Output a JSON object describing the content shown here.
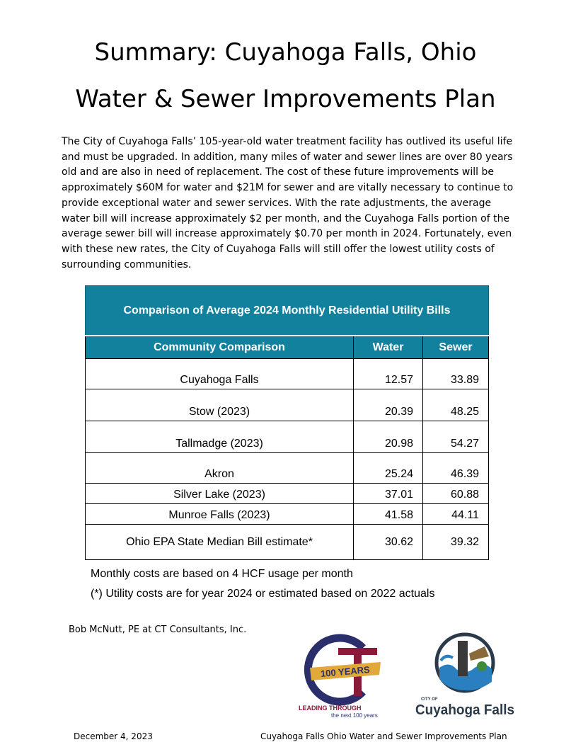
{
  "title_line1": "Summary: Cuyahoga Falls, Ohio",
  "title_line2": "Water & Sewer Improvements Plan",
  "intro": "The City of Cuyahoga Falls’ 105-year-old water treatment facility has outlived its useful life and must be upgraded. In addition, many miles of water and sewer lines are over 80 years old and are also in need of replacement. The cost of these future improvements will be approximately $60M for water and $21M for sewer and are vitally necessary to continue to provide exceptional water and sewer services. With the rate adjustments, the average water bill will increase approximately $2 per month, and the Cuyahoga Falls portion of the average sewer bill will increase approximately $0.70 per month in 2024. Fortunately, even with these new rates, the City of Cuyahoga Falls will still offer the lowest utility costs of surrounding communities.",
  "table": {
    "caption": "Comparison of Average 2024 Monthly Residential Utility Bills",
    "headers": [
      "Community Comparison",
      "Water",
      "Sewer"
    ],
    "rows": [
      {
        "community": "Cuyahoga Falls",
        "water": "12.57",
        "sewer": "33.89"
      },
      {
        "community": "Stow (2023)",
        "water": "20.39",
        "sewer": "48.25"
      },
      {
        "community": "Tallmadge (2023)",
        "water": "20.98",
        "sewer": "54.27"
      },
      {
        "community": "Akron",
        "water": "25.24",
        "sewer": "46.39"
      },
      {
        "community": "Silver Lake (2023)",
        "water": "37.01",
        "sewer": "60.88"
      },
      {
        "community": "Munroe Falls (2023)",
        "water": "41.58",
        "sewer": "44.11"
      },
      {
        "community": "Ohio EPA State Median Bill estimate*",
        "water": "30.62",
        "sewer": "39.32"
      }
    ]
  },
  "note1": "Monthly costs are based on 4 HCF usage per month",
  "note2": "(*) Utility costs are for year 2024 or estimated based on 2022 actuals",
  "author": "Bob McNutt, PE at CT Consultants, Inc.",
  "ct_logo": {
    "years": "100 YEARS",
    "tagline1": "LEADING THROUGH",
    "tagline2": "the next 100 years"
  },
  "cf_logo": {
    "city_of": "CITY OF",
    "name": "Cuyahoga Falls"
  },
  "footer_date": "December 4, 2023",
  "footer_plan": "Cuyahoga Falls Ohio Water and Sewer Improvements Plan",
  "colors": {
    "table_header": "#12819d",
    "ct_maroon": "#8b1a3a",
    "ct_navy": "#2a2f6b",
    "ct_gold": "#e0a93a",
    "cf_blue": "#2a7fc0"
  }
}
